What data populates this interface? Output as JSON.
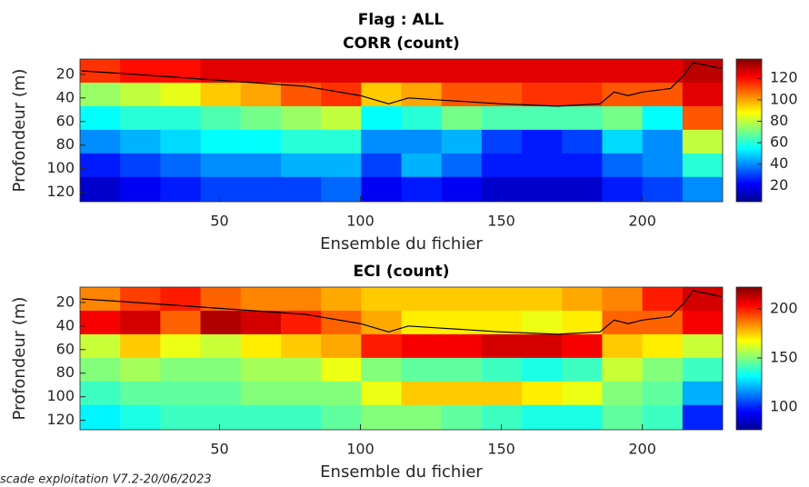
{
  "suptitle": "Flag : ALL",
  "footer": "scade exploitation V7.2-20/06/2023",
  "chart_data": [
    {
      "type": "heatmap",
      "title": "CORR (count)",
      "x_label": "Ensemble du fichier",
      "y_label": "Profondeur (m)",
      "colormap": "jet",
      "x_edges": [
        0.5,
        14.75,
        29,
        43.25,
        57.5,
        71.75,
        86,
        100.25,
        114.5,
        128.75,
        143,
        157.25,
        171.5,
        185.75,
        200,
        214.25,
        228.5
      ],
      "y_edges": [
        7,
        27,
        47,
        67,
        87,
        107,
        128
      ],
      "z": [
        [
          115,
          120,
          120,
          125,
          125,
          125,
          125,
          125,
          125,
          125,
          125,
          125,
          125,
          125,
          125,
          130
        ],
        [
          75,
          80,
          85,
          95,
          100,
          110,
          115,
          95,
          100,
          110,
          110,
          115,
          115,
          110,
          110,
          125
        ],
        [
          55,
          60,
          60,
          65,
          70,
          75,
          80,
          55,
          60,
          70,
          65,
          65,
          65,
          70,
          55,
          110
        ],
        [
          40,
          45,
          50,
          55,
          55,
          60,
          60,
          40,
          40,
          45,
          30,
          25,
          30,
          50,
          40,
          80
        ],
        [
          25,
          30,
          35,
          40,
          40,
          45,
          45,
          30,
          45,
          35,
          25,
          25,
          25,
          35,
          40,
          60
        ],
        [
          15,
          20,
          25,
          30,
          30,
          30,
          35,
          20,
          25,
          20,
          15,
          15,
          15,
          25,
          30,
          40
        ]
      ],
      "line": {
        "color": "#000000",
        "x": [
          1,
          20,
          50,
          80,
          100,
          110,
          117,
          130,
          150,
          170,
          185,
          190,
          195,
          200,
          210,
          215,
          218,
          222,
          228
        ],
        "values": [
          17,
          20,
          25,
          30,
          38,
          45,
          40,
          42,
          45,
          47,
          45,
          35,
          38,
          35,
          32,
          20,
          10,
          12,
          15
        ]
      },
      "xlim": [
        0.5,
        228.5
      ],
      "xticks": [
        50,
        100,
        150,
        200
      ],
      "ylim": [
        7,
        128
      ],
      "yticks": [
        20,
        40,
        60,
        80,
        100,
        120
      ],
      "y_reversed": true,
      "clim": [
        5,
        138
      ],
      "cticks": [
        20,
        40,
        60,
        80,
        100,
        120
      ]
    },
    {
      "type": "heatmap",
      "title": "ECI (count)",
      "x_label": "Ensemble du fichier",
      "y_label": "Profondeur (m)",
      "colormap": "jet",
      "x_edges": [
        0.5,
        14.75,
        29,
        43.25,
        57.5,
        71.75,
        86,
        100.25,
        114.5,
        128.75,
        143,
        157.25,
        171.5,
        185.75,
        200,
        214.25,
        228.5
      ],
      "y_edges": [
        7,
        27,
        47,
        67,
        87,
        107,
        128
      ],
      "z": [
        [
          185,
          195,
          200,
          190,
          185,
          185,
          180,
          175,
          175,
          175,
          175,
          175,
          180,
          185,
          200,
          210
        ],
        [
          205,
          210,
          190,
          215,
          210,
          200,
          190,
          180,
          170,
          170,
          170,
          165,
          170,
          190,
          190,
          205
        ],
        [
          160,
          175,
          165,
          160,
          170,
          175,
          180,
          200,
          205,
          205,
          210,
          210,
          205,
          175,
          170,
          160
        ],
        [
          150,
          155,
          150,
          150,
          155,
          155,
          165,
          150,
          145,
          145,
          140,
          135,
          140,
          160,
          150,
          140
        ],
        [
          140,
          145,
          145,
          145,
          150,
          150,
          150,
          165,
          175,
          175,
          175,
          170,
          165,
          150,
          145,
          120
        ],
        [
          130,
          135,
          140,
          140,
          140,
          140,
          145,
          150,
          150,
          145,
          140,
          135,
          135,
          145,
          140,
          100
        ]
      ],
      "line": {
        "color": "#000000",
        "x": [
          1,
          20,
          50,
          80,
          100,
          110,
          117,
          130,
          150,
          170,
          185,
          190,
          195,
          200,
          210,
          215,
          218,
          222,
          228
        ],
        "values": [
          17,
          20,
          25,
          30,
          38,
          45,
          40,
          42,
          45,
          47,
          45,
          35,
          38,
          35,
          32,
          20,
          10,
          12,
          15
        ]
      },
      "xlim": [
        0.5,
        228.5
      ],
      "xticks": [
        50,
        100,
        150,
        200
      ],
      "ylim": [
        7,
        128
      ],
      "yticks": [
        20,
        40,
        60,
        80,
        100,
        120
      ],
      "y_reversed": true,
      "clim": [
        77,
        222
      ],
      "cticks": [
        100,
        150,
        200
      ]
    }
  ]
}
